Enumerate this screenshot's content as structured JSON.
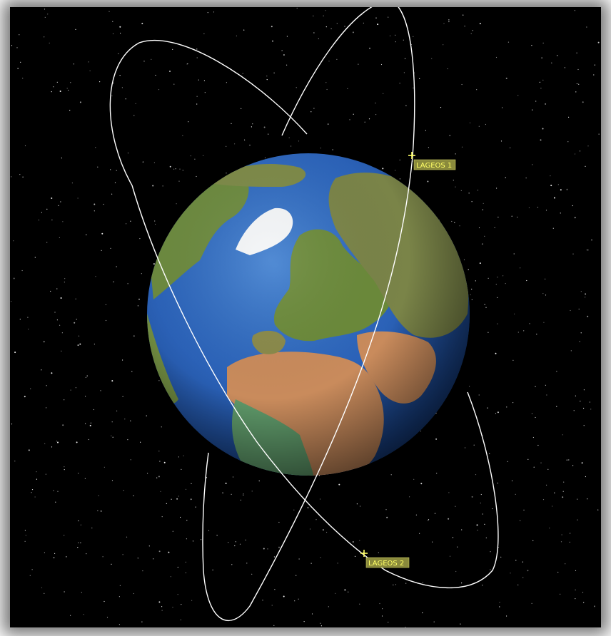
{
  "scene": {
    "colors": {
      "space": "#000000",
      "orbit": "#ffffff",
      "label_bg": "#8a8a3c",
      "label_text": "#ffff66",
      "marker": "#ffff66",
      "ocean": "#2b62b8",
      "land_green": "#6f8a3e",
      "land_desert": "#c88a5a",
      "ice": "#ffffff"
    },
    "satellites": [
      {
        "name": "LAGEOS 1",
        "icon": "satellite-marker-icon"
      },
      {
        "name": "LAGEOS 2",
        "icon": "satellite-marker-icon"
      }
    ]
  }
}
